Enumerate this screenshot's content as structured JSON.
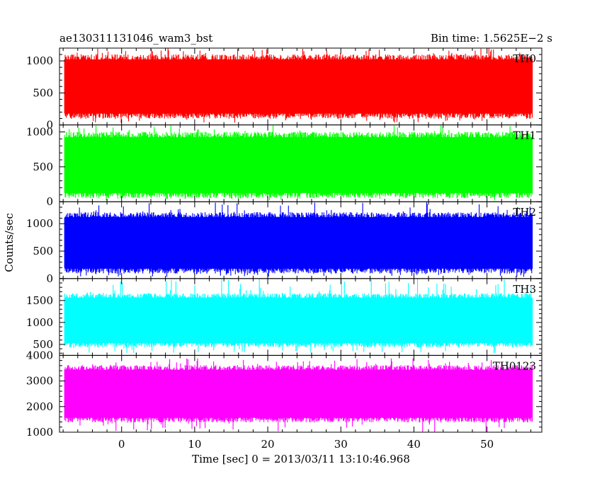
{
  "header": {
    "title": "ae130311131046_wam3_bst",
    "bin_time": "Bin time: 1.5625E−2 s"
  },
  "chart_data": {
    "type": "line",
    "ylabel": "Counts/sec",
    "xlabel": "Time [sec] 0 = 2013/03/11 13:10:46.968",
    "xlim": [
      -8.5,
      57.5
    ],
    "x_ticks": [
      0,
      10,
      20,
      30,
      40,
      50
    ],
    "x_tick_labels": [
      "0",
      "10",
      "20",
      "30",
      "40",
      "50"
    ],
    "data_x_range": [
      -7.8,
      56.2
    ],
    "bin_time": 0.015625,
    "grid": false,
    "panels": [
      {
        "name": "TH0",
        "color": "#ff0000",
        "ylim": [
          0,
          1200
        ],
        "y_ticks": [
          0,
          500,
          1000
        ],
        "y_tick_labels": [
          "0",
          "500",
          "1000"
        ],
        "typical_low": 150,
        "typical_high": 1050,
        "min": 30,
        "max": 1200
      },
      {
        "name": "TH1",
        "color": "#00ff00",
        "ylim": [
          0,
          1100
        ],
        "y_ticks": [
          0,
          500,
          1000
        ],
        "y_tick_labels": [
          "0",
          "500",
          "1000"
        ],
        "typical_low": 100,
        "typical_high": 950,
        "min": 20,
        "max": 1100
      },
      {
        "name": "TH2",
        "color": "#0000ff",
        "ylim": [
          0,
          1400
        ],
        "y_ticks": [
          0,
          500,
          1000
        ],
        "y_tick_labels": [
          "0",
          "500",
          "1000"
        ],
        "typical_low": 150,
        "typical_high": 1150,
        "min": 30,
        "max": 1400
      },
      {
        "name": "TH3",
        "color": "#00ffff",
        "ylim": [
          250,
          2000
        ],
        "y_ticks": [
          500,
          1000,
          1500
        ],
        "y_tick_labels": [
          "500",
          "1000",
          "1500"
        ],
        "typical_low": 500,
        "typical_high": 1600,
        "min": 300,
        "max": 2000
      },
      {
        "name": "TH0123",
        "color": "#ff00ff",
        "ylim": [
          1000,
          4000
        ],
        "y_ticks": [
          1000,
          2000,
          3000,
          4000
        ],
        "y_tick_labels": [
          "1000",
          "2000",
          "3000",
          "4000"
        ],
        "typical_low": 1500,
        "typical_high": 3500,
        "min": 1000,
        "max": 3900
      }
    ]
  }
}
